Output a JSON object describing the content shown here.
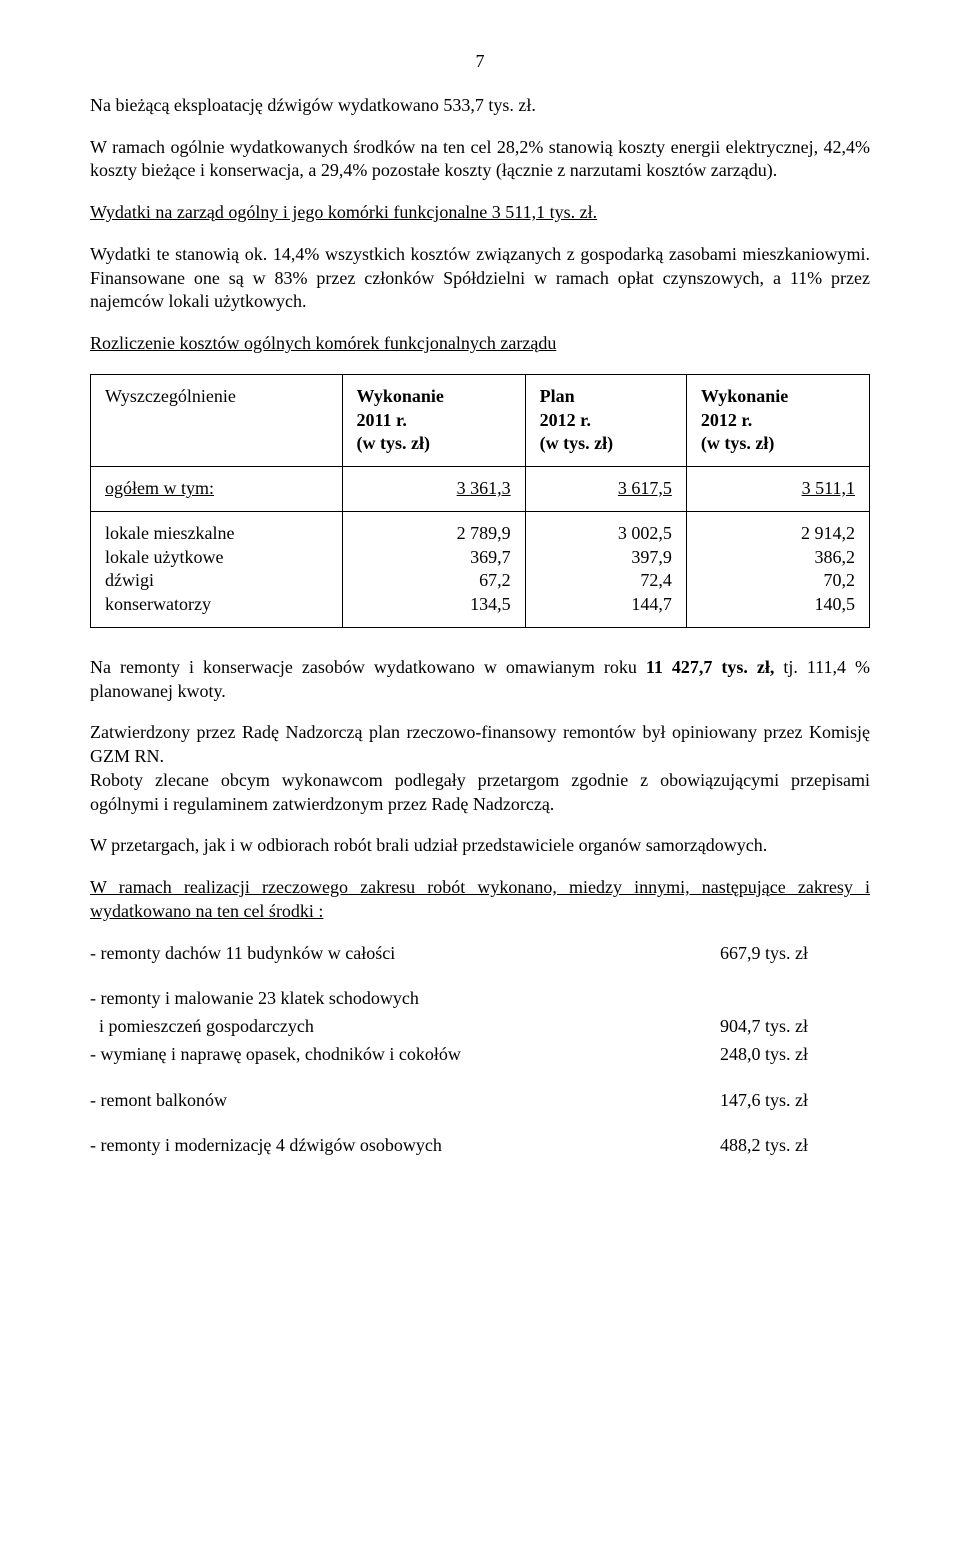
{
  "pageNumber": "7",
  "p1": "Na bieżącą eksploatację dźwigów wydatkowano 533,7 tys. zł.",
  "p2": "W ramach ogólnie wydatkowanych środków na ten cel 28,2% stanowią koszty energii elektrycznej, 42,4% koszty bieżące i konserwacja, a 29,4% pozostałe koszty (łącznie z narzutami kosztów zarządu).",
  "p3": "Wydatki na zarząd ogólny i jego komórki funkcjonalne 3 511,1 tys. zł.",
  "p4": "Wydatki te stanowią ok. 14,4% wszystkich kosztów związanych z gospodarką zasobami mieszkaniowymi. Finansowane one są w 83% przez członków Spółdzielni w ramach opłat czynszowych, a 11% przez najemców lokali użytkowych.",
  "p5": "Rozliczenie kosztów ogólnych komórek funkcjonalnych zarządu",
  "table": {
    "headers": [
      "Wyszczególnienie",
      "Wykonanie\n2011 r.\n(w tys. zł)",
      "Plan\n2012 r.\n(w tys. zł)",
      "Wykonanie\n2012 r.\n(w tys. zł)"
    ],
    "ogolem": {
      "label": "ogółem w tym:",
      "v1": "3 361,3",
      "v2": "3 617,5",
      "v3": "3 511,1"
    },
    "rows": [
      {
        "label": "lokale mieszkalne",
        "v1": "2 789,9",
        "v2": "3 002,5",
        "v3": "2 914,2"
      },
      {
        "label": "lokale użytkowe",
        "v1": "369,7",
        "v2": "397,9",
        "v3": "386,2"
      },
      {
        "label": "dźwigi",
        "v1": "67,2",
        "v2": "72,4",
        "v3": "70,2"
      },
      {
        "label": "konserwatorzy",
        "v1": "134,5",
        "v2": "144,7",
        "v3": "140,5"
      }
    ]
  },
  "p6a": "Na remonty i konserwacje zasobów wydatkowano w omawianym roku ",
  "p6b": "11 427,7 tys. zł,",
  "p6c": " tj. 111,4 % planowanej kwoty.",
  "p7": "Zatwierdzony przez Radę Nadzorczą plan rzeczowo-finansowy remontów był opiniowany przez Komisję GZM RN.",
  "p8": "Roboty zlecane obcym wykonawcom podlegały przetargom zgodnie z obowiązującymi przepisami ogólnymi i regulaminem zatwierdzonym przez Radę Nadzorczą.",
  "p9": "W przetargach, jak i w odbiorach robót brali udział przedstawiciele organów samorządowych.",
  "p10": "W ramach realizacji rzeczowego zakresu robót wykonano, miedzy innymi, następujące zakresy i wydatkowano na ten cel środki :",
  "items": [
    {
      "label": "- remonty dachów 11 budynków w całości",
      "val": "667,9  tys. zł"
    },
    {
      "label": "- remonty i malowanie 23 klatek schodowych",
      "val": ""
    },
    {
      "label": "  i pomieszczeń gospodarczych",
      "val": "904,7  tys. zł"
    },
    {
      "label": "- wymianę i naprawę opasek, chodników i cokołów",
      "val": "248,0  tys. zł"
    },
    {
      "label": "- remont balkonów",
      "val": "147,6  tys. zł"
    },
    {
      "label": "- remonty i modernizację 4 dźwigów osobowych",
      "val": "488,2  tys. zł"
    }
  ]
}
